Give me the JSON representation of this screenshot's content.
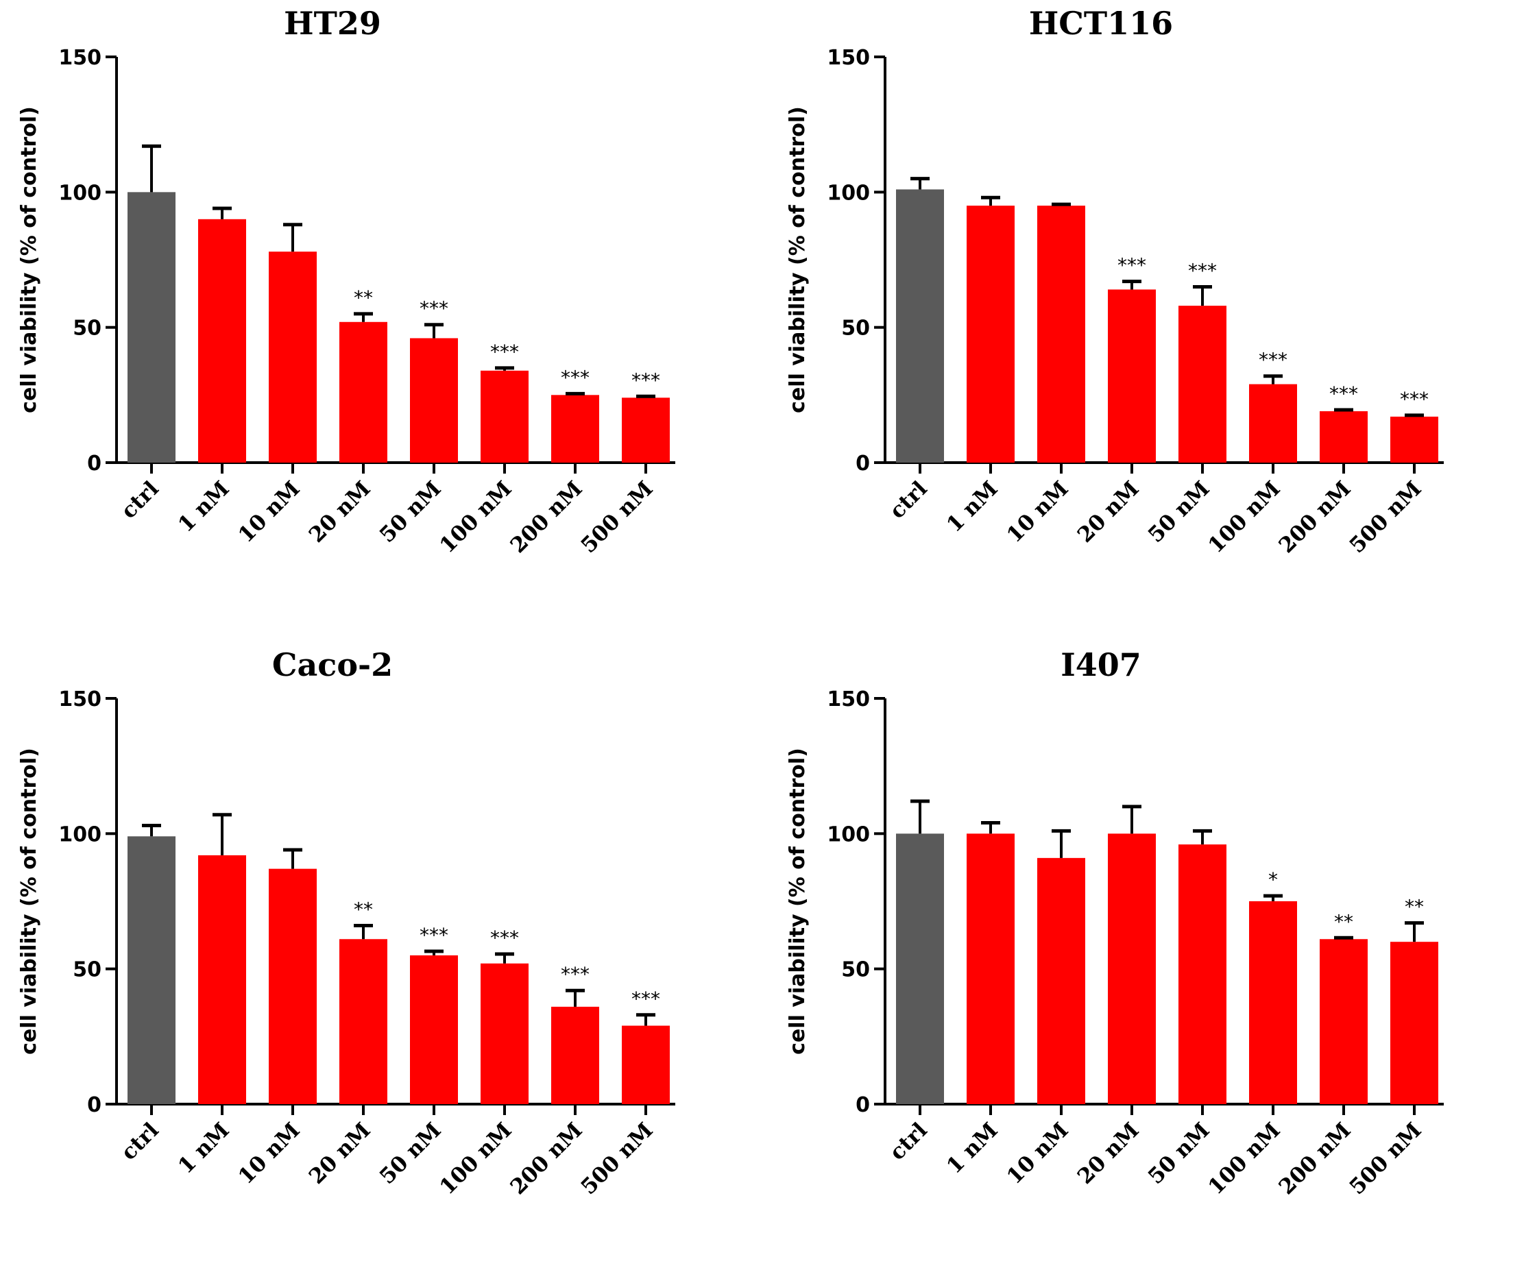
{
  "colors": {
    "control": "#5a5a5a",
    "treated": "#ff0000",
    "axis": "#000000"
  },
  "chart_data": [
    {
      "type": "bar",
      "title": "HT29",
      "ylabel": "cell viability (% of control)",
      "xlabel": "",
      "ylim": [
        0,
        150
      ],
      "yticks": [
        "0",
        "50",
        "100",
        "150"
      ],
      "categories": [
        "ctrl",
        "1 nM",
        "10 nM",
        "20 nM",
        "50 nM",
        "100 nM",
        "200 nM",
        "500 nM"
      ],
      "values": [
        100,
        90,
        78,
        52,
        46,
        34,
        25,
        24
      ],
      "errors": [
        17,
        4,
        10,
        3,
        5,
        1,
        0.5,
        0.5
      ],
      "significance": [
        "",
        "",
        "",
        "**",
        "***",
        "***",
        "***",
        "***"
      ]
    },
    {
      "type": "bar",
      "title": "HCT116",
      "ylabel": "cell viability (% of control)",
      "xlabel": "",
      "ylim": [
        0,
        150
      ],
      "yticks": [
        "0",
        "50",
        "100",
        "150"
      ],
      "categories": [
        "ctrl",
        "1 nM",
        "10 nM",
        "20 nM",
        "50 nM",
        "100 nM",
        "200 nM",
        "500 nM"
      ],
      "values": [
        101,
        95,
        95,
        64,
        58,
        29,
        19,
        17
      ],
      "errors": [
        4,
        3,
        0.5,
        3,
        7,
        3,
        0.5,
        0.5
      ],
      "significance": [
        "",
        "",
        "",
        "***",
        "***",
        "***",
        "***",
        "***"
      ]
    },
    {
      "type": "bar",
      "title": "Caco-2",
      "ylabel": "cell viability (% of control)",
      "xlabel": "",
      "ylim": [
        0,
        150
      ],
      "yticks": [
        "0",
        "50",
        "100",
        "150"
      ],
      "categories": [
        "ctrl",
        "1 nM",
        "10 nM",
        "20 nM",
        "50 nM",
        "100 nM",
        "200 nM",
        "500 nM"
      ],
      "values": [
        99,
        92,
        87,
        61,
        55,
        52,
        36,
        29
      ],
      "errors": [
        4,
        15,
        7,
        5,
        1.5,
        3.5,
        6,
        4
      ],
      "significance": [
        "",
        "",
        "",
        "**",
        "***",
        "***",
        "***",
        "***"
      ]
    },
    {
      "type": "bar",
      "title": "I407",
      "ylabel": "cell viability (% of control)",
      "xlabel": "",
      "ylim": [
        0,
        150
      ],
      "yticks": [
        "0",
        "50",
        "100",
        "150"
      ],
      "categories": [
        "ctrl",
        "1 nM",
        "10 nM",
        "20 nM",
        "50 nM",
        "100 nM",
        "200 nM",
        "500 nM"
      ],
      "values": [
        100,
        100,
        91,
        100,
        96,
        75,
        61,
        60
      ],
      "errors": [
        12,
        4,
        10,
        10,
        5,
        2,
        0.5,
        7
      ],
      "significance": [
        "",
        "",
        "",
        "",
        "",
        "*",
        "**",
        "**"
      ]
    }
  ]
}
